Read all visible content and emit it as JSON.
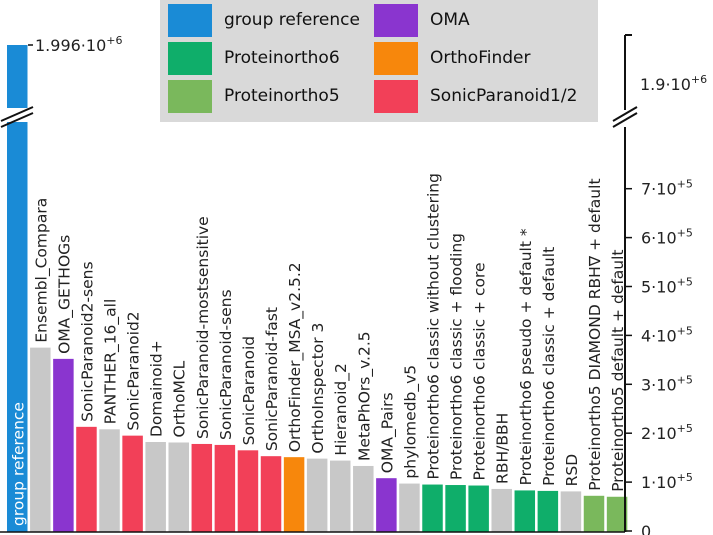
{
  "chart_data": {
    "type": "bar",
    "title": "",
    "xlabel": "",
    "ylabel": "",
    "ylim": [
      0,
      800000
    ],
    "y_break": true,
    "y_break_label": "1.9·10^+6",
    "reference_label": "1.996·10^+6",
    "ticks": [
      {
        "value": 0,
        "label": "0"
      },
      {
        "value": 100000,
        "label": "1·10^+5"
      },
      {
        "value": 200000,
        "label": "2·10^+5"
      },
      {
        "value": 300000,
        "label": "3·10^+5"
      },
      {
        "value": 400000,
        "label": "4·10^+5"
      },
      {
        "value": 500000,
        "label": "5·10^+5"
      },
      {
        "value": 600000,
        "label": "6·10^+5"
      },
      {
        "value": 700000,
        "label": "7·10^+5"
      }
    ],
    "legend": [
      {
        "name": "group reference",
        "color": "#1a8bd6"
      },
      {
        "name": "Proteinortho6",
        "color": "#0fae6a"
      },
      {
        "name": "Proteinortho5",
        "color": "#7ab85c"
      },
      {
        "name": "OMA",
        "color": "#8a35cf"
      },
      {
        "name": "OrthoFinder",
        "color": "#f7870c"
      },
      {
        "name": "SonicParanoid1/2",
        "color": "#f24058"
      }
    ],
    "categories": [
      {
        "name": "group reference",
        "value": 1996000,
        "group": "group reference"
      },
      {
        "name": "Ensembl_Compara",
        "value": 375000,
        "group": "other"
      },
      {
        "name": "OMA_GETHOGs",
        "value": 352000,
        "group": "OMA"
      },
      {
        "name": "SonicParanoid2-sens",
        "value": 213000,
        "group": "SonicParanoid1/2"
      },
      {
        "name": "PANTHER_16_all",
        "value": 208000,
        "group": "other"
      },
      {
        "name": "SonicParanoid2",
        "value": 195000,
        "group": "SonicParanoid1/2"
      },
      {
        "name": "Domainoid+",
        "value": 182000,
        "group": "other"
      },
      {
        "name": "OrthoMCL",
        "value": 181000,
        "group": "other"
      },
      {
        "name": "SonicParanoid-mostsensitive",
        "value": 178000,
        "group": "SonicParanoid1/2"
      },
      {
        "name": "SonicParanoid-sens",
        "value": 176000,
        "group": "SonicParanoid1/2"
      },
      {
        "name": "SonicParanoid",
        "value": 165000,
        "group": "SonicParanoid1/2"
      },
      {
        "name": "SonicParanoid-fast",
        "value": 153000,
        "group": "SonicParanoid1/2"
      },
      {
        "name": "OrthoFinder_MSA_v2.5.2",
        "value": 151000,
        "group": "OrthoFinder"
      },
      {
        "name": "OrthoInspector 3",
        "value": 148000,
        "group": "other"
      },
      {
        "name": "Hieranoid_2",
        "value": 144000,
        "group": "other"
      },
      {
        "name": "MetaPhOrs_v.2.5",
        "value": 133000,
        "group": "other"
      },
      {
        "name": "OMA_Pairs",
        "value": 108000,
        "group": "OMA"
      },
      {
        "name": "phylomedb_v5",
        "value": 97000,
        "group": "other"
      },
      {
        "name": "Proteinortho6 classic without clustering",
        "value": 95000,
        "group": "Proteinortho6"
      },
      {
        "name": "Proteinortho6 classic + flooding",
        "value": 94000,
        "group": "Proteinortho6"
      },
      {
        "name": "Proteinortho6 classic + core",
        "value": 93000,
        "group": "Proteinortho6"
      },
      {
        "name": "RBH/BBH",
        "value": 86000,
        "group": "other"
      },
      {
        "name": "Proteinortho6 pseudo + default *",
        "value": 83000,
        "group": "Proteinortho6"
      },
      {
        "name": "Proteinortho6 classic + default",
        "value": 82000,
        "group": "Proteinortho6"
      },
      {
        "name": "RSD",
        "value": 81000,
        "group": "other"
      },
      {
        "name": "Proteinortho5 DIAMOND RBH∇ + default",
        "value": 72000,
        "group": "Proteinortho5"
      },
      {
        "name": "Proteinortho5 default + default",
        "value": 70000,
        "group": "Proteinortho5"
      }
    ],
    "group_colors": {
      "group reference": "#1a8bd6",
      "Proteinortho6": "#0fae6a",
      "Proteinortho5": "#7ab85c",
      "OMA": "#8a35cf",
      "OrthoFinder": "#f7870c",
      "SonicParanoid1/2": "#f24058",
      "other": "#c8c8c8"
    }
  }
}
